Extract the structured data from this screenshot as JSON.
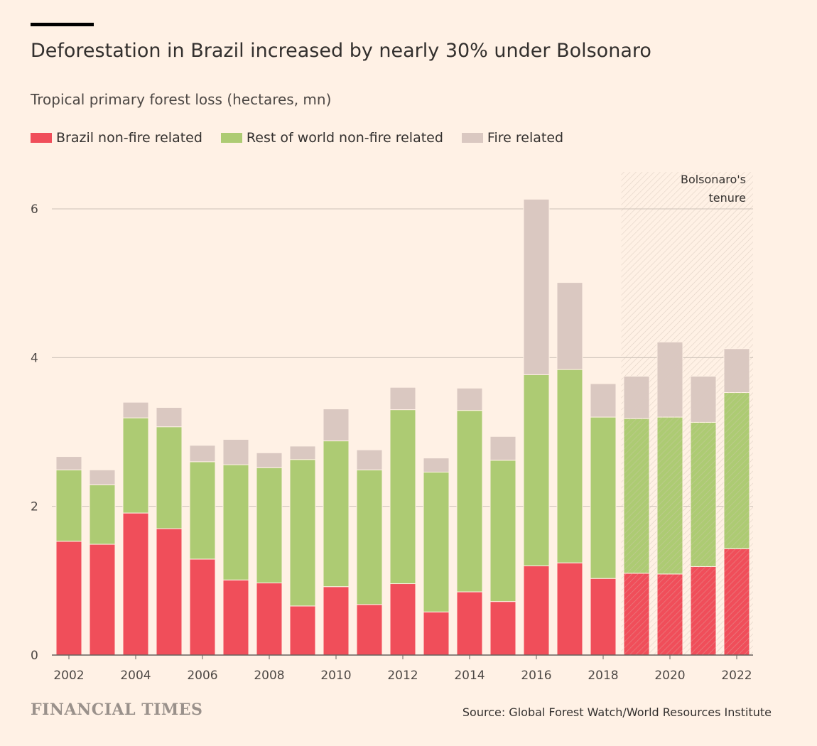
{
  "title": "Deforestation in Brazil increased by nearly 30% under Bolsonaro",
  "subtitle": "Tropical primary forest loss (hectares, mn)",
  "source": "Source: Global Forest Watch/World Resources Institute",
  "logo": "FINANCIAL TIMES",
  "colors": {
    "background": "#fff1e5",
    "brazil": "#f04e5a",
    "rest": "#adcb73",
    "fire": "#dac8c1"
  },
  "chart_data": {
    "type": "bar",
    "stacked": true,
    "title": "Deforestation in Brazil increased by nearly 30% under Bolsonaro",
    "ylabel": "Tropical primary forest loss (hectares, mn)",
    "ylim": [
      0,
      6.3
    ],
    "yticks": [
      0,
      2,
      4,
      6
    ],
    "grid": true,
    "legend_placement": "top-left",
    "categories": [
      2002,
      2003,
      2004,
      2005,
      2006,
      2007,
      2008,
      2009,
      2010,
      2011,
      2012,
      2013,
      2014,
      2015,
      2016,
      2017,
      2018,
      2019,
      2020,
      2021,
      2022
    ],
    "xtick_labels": [
      "2002",
      "2004",
      "2006",
      "2008",
      "2010",
      "2012",
      "2014",
      "2016",
      "2018",
      "2020",
      "2022"
    ],
    "series": [
      {
        "name": "Brazil non-fire related",
        "color": "#f04e5a",
        "values": [
          1.53,
          1.49,
          1.91,
          1.7,
          1.29,
          1.01,
          0.97,
          0.66,
          0.92,
          0.68,
          0.96,
          0.58,
          0.85,
          0.72,
          1.2,
          1.24,
          1.03,
          1.1,
          1.09,
          1.19,
          1.43
        ]
      },
      {
        "name": "Rest of world non-fire related",
        "color": "#adcb73",
        "values": [
          0.96,
          0.8,
          1.28,
          1.37,
          1.31,
          1.55,
          1.55,
          1.97,
          1.96,
          1.81,
          2.34,
          1.88,
          2.44,
          1.9,
          2.57,
          2.6,
          2.17,
          2.08,
          2.11,
          1.94,
          2.1
        ]
      },
      {
        "name": "Fire related",
        "color": "#dac8c1",
        "values": [
          0.18,
          0.2,
          0.21,
          0.26,
          0.22,
          0.34,
          0.2,
          0.18,
          0.43,
          0.27,
          0.3,
          0.19,
          0.3,
          0.32,
          2.36,
          1.17,
          0.45,
          0.57,
          1.01,
          0.62,
          0.59
        ]
      }
    ],
    "annotation": {
      "label": "Bolsonaro's tenure",
      "line1": "Bolsonaro's",
      "line2": "tenure",
      "from": 2019,
      "to": 2022,
      "style": "hatched"
    }
  }
}
